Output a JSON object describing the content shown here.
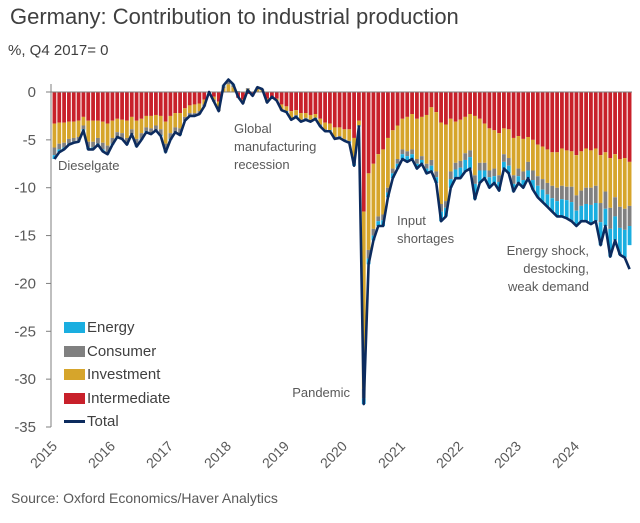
{
  "header": {
    "title": "Germany: Contribution to industrial production",
    "subtitle": "%, Q4 2017= 0"
  },
  "footer": {
    "source": "Source: Oxford Economics/Haver Analytics"
  },
  "colors": {
    "energy": "#1aaee0",
    "consumer": "#808080",
    "investment": "#d6a52b",
    "intermediate": "#c8202a",
    "total": "#0c2b5e",
    "axis": "#7f7f7f"
  },
  "chart_data": {
    "type": "bar",
    "stacked": true,
    "title": "Germany: Contribution to industrial production",
    "subtitle": "%, Q4 2017= 0",
    "xlabel": "",
    "ylabel": "%, Q4 2017= 0",
    "ylim": [
      -35,
      0
    ],
    "yticks": [
      0,
      -5,
      -10,
      -15,
      -20,
      -25,
      -30,
      -35
    ],
    "ytick_labels": [
      "0",
      "-5",
      "-10",
      "-15",
      "-20",
      "-25",
      "-30",
      "-35"
    ],
    "xticks": [
      "2015",
      "2016",
      "2017",
      "2018",
      "2019",
      "2020",
      "2021",
      "2022",
      "2023",
      "2024"
    ],
    "frequency": "monthly",
    "start": "2015-01",
    "end": "2024-12",
    "grid": false,
    "legend_position": "bottom-left",
    "legend": [
      "Energy",
      "Consumer",
      "Investment",
      "Intermediate",
      "Total"
    ],
    "annotations": [
      {
        "text": [
          "Dieselgate"
        ],
        "at": "2015-01",
        "align": "left"
      },
      {
        "text": [
          "Global",
          "manufacturing",
          "recession"
        ],
        "at": "2018-06",
        "align": "left"
      },
      {
        "text": [
          "Pandemic"
        ],
        "at": "2020-04",
        "align": "right"
      },
      {
        "text": [
          "Input",
          "shortages"
        ],
        "at": "2021-09",
        "align": "left"
      },
      {
        "text": [
          "Energy shock,",
          "destocking,",
          "weak demand"
        ],
        "at": "2023-08",
        "align": "right"
      }
    ],
    "series": [
      {
        "name": "Intermediate",
        "values": [
          -3.3,
          -3.2,
          -3.2,
          -3.1,
          -3.1,
          -3.0,
          -2.6,
          -3.0,
          -3.0,
          -3.0,
          -3.1,
          -3.3,
          -3.0,
          -2.8,
          -2.9,
          -3.0,
          -2.6,
          -3.0,
          -2.8,
          -2.5,
          -2.5,
          -2.4,
          -2.5,
          -3.1,
          -2.5,
          -2.2,
          -2.2,
          -1.7,
          -1.4,
          -1.3,
          -1.2,
          -0.8,
          0.0,
          -0.5,
          -1.0,
          0.0,
          0.0,
          0.0,
          -0.6,
          -0.8,
          -0.2,
          -0.4,
          0.0,
          0.0,
          -0.7,
          -0.5,
          -0.7,
          -1.3,
          -1.5,
          -2.0,
          -1.9,
          -2.2,
          -2.2,
          -2.4,
          -2.3,
          -2.8,
          -3.2,
          -3.3,
          -3.7,
          -3.7,
          -3.9,
          -3.9,
          -4.8,
          -3.0,
          -12.5,
          -8.5,
          -7.5,
          -6.5,
          -6.0,
          -4.8,
          -4.0,
          -3.5,
          -2.8,
          -2.6,
          -2.3,
          -2.8,
          -2.6,
          -2.4,
          -1.6,
          -2.1,
          -3.2,
          -3.4,
          -2.8,
          -3.1,
          -2.9,
          -2.6,
          -2.3,
          -2.5,
          -2.8,
          -3.3,
          -3.8,
          -4.0,
          -4.3,
          -3.8,
          -3.9,
          -4.8,
          -4.6,
          -4.9,
          -4.7,
          -5.0,
          -5.5,
          -5.7,
          -6.0,
          -6.3,
          -6.3,
          -5.9,
          -6.1,
          -6.2,
          -6.6,
          -6.2,
          -5.9,
          -6.1,
          -5.9,
          -6.6,
          -6.3,
          -6.9,
          -6.5,
          -7.0,
          -6.9,
          -7.3
        ]
      },
      {
        "name": "Investment",
        "values": [
          -2.5,
          -2.2,
          -2.1,
          -1.8,
          -1.7,
          -1.7,
          -0.9,
          -2.2,
          -2.2,
          -1.8,
          -2.2,
          -2.3,
          -1.8,
          -1.4,
          -1.4,
          -1.8,
          -1.3,
          -1.9,
          -1.5,
          -1.2,
          -1.3,
          -1.1,
          -1.4,
          -2.3,
          -1.8,
          -1.5,
          -1.6,
          -0.9,
          -0.8,
          -0.9,
          -0.8,
          -0.5,
          0.0,
          -0.3,
          -0.7,
          0.4,
          0.8,
          0.5,
          0.0,
          -0.3,
          0.3,
          0.0,
          0.3,
          0.2,
          -0.3,
          0.0,
          -0.2,
          -0.6,
          -0.5,
          -0.7,
          -0.5,
          -0.7,
          -0.5,
          -0.5,
          -0.4,
          -0.6,
          -0.7,
          -0.7,
          -1.0,
          -0.9,
          -1.0,
          -1.2,
          -2.4,
          -0.5,
          -18.5,
          -8.0,
          -6.8,
          -6.5,
          -6.8,
          -5.2,
          -4.0,
          -3.5,
          -3.2,
          -3.6,
          -3.7,
          -4.2,
          -4.1,
          -5.1,
          -5.5,
          -6.2,
          -8.5,
          -8.0,
          -5.5,
          -4.3,
          -4.3,
          -3.8,
          -3.8,
          -6.2,
          -4.6,
          -4.1,
          -4.4,
          -4.0,
          -4.4,
          -2.7,
          -3.0,
          -3.9,
          -3.4,
          -3.4,
          -2.6,
          -3.2,
          -3.3,
          -3.4,
          -3.5,
          -3.5,
          -3.7,
          -3.9,
          -3.8,
          -3.7,
          -4.2,
          -4.1,
          -4.1,
          -3.9,
          -3.9,
          -5.0,
          -4.1,
          -5.2,
          -4.5,
          -5.0,
          -5.3,
          -4.6
        ]
      },
      {
        "name": "Consumer",
        "values": [
          -0.8,
          -0.6,
          -0.5,
          -0.5,
          -0.4,
          -0.4,
          -0.4,
          -0.6,
          -0.6,
          -0.6,
          -0.7,
          -0.7,
          -0.6,
          -0.5,
          -0.6,
          -0.6,
          -0.5,
          -0.7,
          -0.6,
          -0.4,
          -0.5,
          -0.5,
          -0.6,
          -0.8,
          -0.6,
          -0.5,
          -0.6,
          -0.4,
          -0.3,
          -0.3,
          -0.3,
          -0.2,
          0.0,
          -0.2,
          -0.3,
          0.2,
          0.3,
          0.2,
          0.1,
          -0.1,
          0.1,
          0.0,
          0.2,
          0.1,
          -0.1,
          0.0,
          0.0,
          0.0,
          0.0,
          -0.1,
          -0.1,
          -0.1,
          -0.1,
          -0.1,
          0.0,
          -0.1,
          -0.1,
          0.0,
          -0.1,
          -0.1,
          -0.1,
          -0.1,
          -0.3,
          0.0,
          -1.0,
          -0.9,
          -0.7,
          -0.5,
          -0.6,
          -0.5,
          -0.5,
          -0.5,
          -0.5,
          -0.5,
          -0.5,
          -0.5,
          -0.4,
          -0.5,
          -0.6,
          -0.6,
          -0.8,
          -0.7,
          -0.8,
          -0.7,
          -0.7,
          -0.7,
          -0.7,
          -0.9,
          -0.8,
          -0.8,
          -0.7,
          -0.8,
          -0.7,
          -0.8,
          -0.8,
          -0.9,
          -0.8,
          -0.9,
          -0.9,
          -1.0,
          -1.0,
          -1.1,
          -1.2,
          -1.3,
          -1.4,
          -1.4,
          -1.4,
          -1.6,
          -1.6,
          -1.6,
          -1.7,
          -1.8,
          -1.8,
          -2.0,
          -1.8,
          -2.2,
          -2.0,
          -2.2,
          -2.2,
          -2.1
        ]
      },
      {
        "name": "Energy",
        "values": [
          -0.4,
          -0.3,
          -0.2,
          -0.1,
          -0.1,
          -0.1,
          -0.1,
          -0.2,
          -0.2,
          -0.1,
          -0.2,
          -0.2,
          -0.1,
          0.0,
          0.0,
          -0.1,
          0.0,
          -0.1,
          -0.1,
          -0.1,
          -0.1,
          0.0,
          -0.1,
          -0.1,
          -0.1,
          0.0,
          -0.1,
          0.0,
          0.0,
          0.0,
          0.0,
          0.0,
          0.0,
          0.0,
          0.0,
          0.1,
          0.2,
          0.1,
          0.0,
          0.0,
          0.0,
          0.0,
          0.0,
          0.0,
          0.0,
          0.0,
          0.0,
          0.0,
          -0.1,
          -0.1,
          -0.1,
          -0.1,
          -0.1,
          -0.1,
          -0.1,
          -0.1,
          -0.1,
          -0.1,
          -0.1,
          -0.1,
          -0.1,
          -0.1,
          -0.2,
          -0.1,
          -0.6,
          -0.6,
          -0.5,
          -0.5,
          -0.6,
          -0.5,
          -0.5,
          -0.5,
          -0.5,
          -0.6,
          -0.5,
          -0.5,
          -0.4,
          -0.5,
          -0.6,
          -0.6,
          -1.0,
          -0.9,
          -0.9,
          -0.9,
          -1.1,
          -1.2,
          -1.2,
          -1.6,
          -1.3,
          -0.8,
          -1.1,
          -0.7,
          -0.9,
          -0.7,
          -0.8,
          -0.8,
          -0.7,
          -0.8,
          -0.8,
          -1.0,
          -1.2,
          -1.3,
          -1.3,
          -1.4,
          -1.6,
          -1.8,
          -1.9,
          -2.0,
          -1.6,
          -1.6,
          -1.8,
          -2.0,
          -1.9,
          -2.4,
          -1.8,
          -2.9,
          -2.5,
          -2.8,
          -2.9,
          -2.0
        ]
      },
      {
        "name": "Total",
        "type": "line",
        "values": [
          -7.0,
          -6.3,
          -6.0,
          -5.5,
          -5.3,
          -5.2,
          -4.0,
          -6.0,
          -6.0,
          -5.5,
          -6.2,
          -6.5,
          -5.5,
          -4.7,
          -4.9,
          -5.5,
          -4.4,
          -5.7,
          -5.0,
          -4.2,
          -4.4,
          -4.0,
          -4.6,
          -6.3,
          -5.0,
          -4.2,
          -4.5,
          -3.0,
          -2.5,
          -2.5,
          -2.3,
          -1.5,
          0.0,
          -1.0,
          -2.0,
          0.7,
          1.3,
          0.8,
          -0.5,
          -1.2,
          0.2,
          -0.4,
          0.5,
          0.3,
          -1.1,
          -0.5,
          -0.9,
          -1.9,
          -2.1,
          -2.9,
          -2.6,
          -3.1,
          -2.9,
          -3.1,
          -2.8,
          -3.6,
          -4.1,
          -4.1,
          -4.9,
          -4.8,
          -5.1,
          -5.3,
          -7.7,
          -3.6,
          -32.6,
          -18.0,
          -15.5,
          -14.0,
          -14.0,
          -11.0,
          -9.0,
          -8.0,
          -7.0,
          -7.3,
          -7.0,
          -8.0,
          -7.5,
          -8.5,
          -8.3,
          -9.5,
          -13.5,
          -13.0,
          -10.0,
          -9.0,
          -9.0,
          -8.3,
          -8.0,
          -11.2,
          -9.5,
          -9.0,
          -10.0,
          -9.5,
          -10.3,
          -8.0,
          -8.5,
          -10.4,
          -9.5,
          -10.0,
          -9.0,
          -10.2,
          -11.0,
          -11.5,
          -12.0,
          -12.5,
          -13.0,
          -13.0,
          -13.2,
          -13.5,
          -14.0,
          -13.5,
          -13.5,
          -13.8,
          -13.5,
          -16.0,
          -14.0,
          -17.2,
          -15.5,
          -17.0,
          -17.3,
          -18.5
        ]
      }
    ]
  }
}
